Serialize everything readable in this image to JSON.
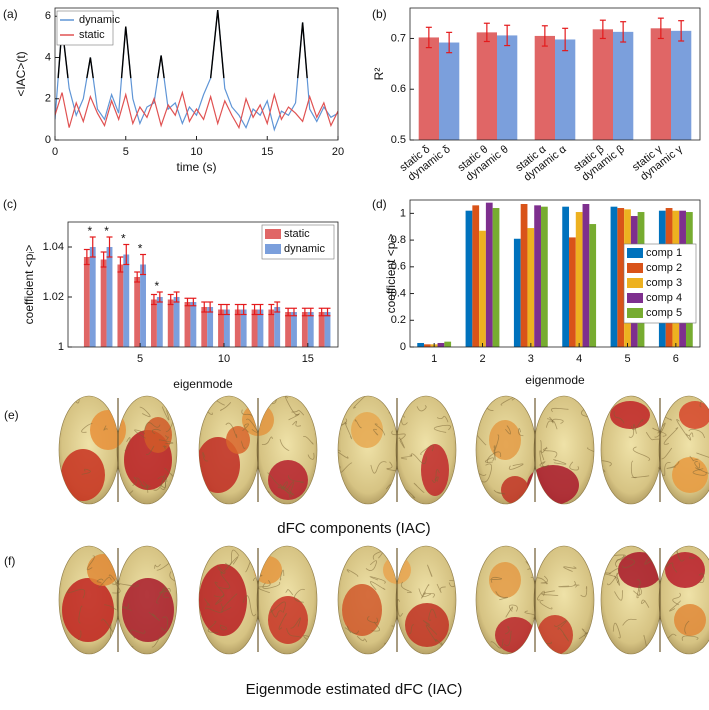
{
  "chart_data": [
    {
      "type": "line",
      "panel": "(a)",
      "x": [
        0,
        0.5,
        1,
        1.5,
        2,
        2.5,
        3,
        3.5,
        4,
        4.5,
        5,
        5.5,
        6,
        6.5,
        7,
        7.5,
        8,
        8.5,
        9,
        9.5,
        10,
        10.5,
        11,
        11.5,
        12,
        12.5,
        13,
        13.5,
        14,
        14.5,
        15,
        15.5,
        16,
        16.5,
        17,
        17.5,
        18,
        18.5,
        19,
        19.5,
        20
      ],
      "series": [
        {
          "name": "dynamic",
          "color": "#5f95d6",
          "values": [
            1,
            5.5,
            2.5,
            1.2,
            2,
            4,
            1.5,
            1,
            2.2,
            1.3,
            5.5,
            2,
            0.8,
            1.6,
            1.8,
            4.1,
            1.5,
            1.8,
            0.8,
            1.6,
            1.2,
            2.2,
            3,
            6.3,
            2.5,
            1.6,
            1.2,
            0.6,
            1.5,
            1.2,
            1.9,
            0.5,
            1.4,
            1.2,
            1.8,
            5.7,
            1.5,
            0.9,
            1.6,
            1.1,
            1.3
          ]
        },
        {
          "name": "static",
          "color": "#e05252",
          "values": [
            1.2,
            2.3,
            0.6,
            1.8,
            0.9,
            2.1,
            1.3,
            0.7,
            1.9,
            1,
            2.2,
            0.8,
            1.6,
            1.1,
            2,
            0.7,
            1.7,
            1.2,
            2.3,
            0.9,
            1.5,
            1,
            2.1,
            0.8,
            1.9,
            1.2,
            0.6,
            2,
            1.1,
            1.7,
            0.8,
            2.2,
            1,
            1.6,
            1.3,
            0.9,
            2.1,
            1.1,
            1.8,
            0.7,
            1.4
          ]
        }
      ],
      "highlight_above": 3,
      "highlight_color": "#000000",
      "xlim": [
        0,
        20
      ],
      "xticks": [
        0,
        5,
        10,
        15,
        20
      ],
      "ylim": [
        0,
        6.4
      ],
      "yticks": [
        0,
        2,
        4,
        6
      ],
      "x_label": "time (s)",
      "y_label": "<IAC>(t)",
      "legend": "upper left"
    },
    {
      "type": "bar",
      "panel": "(b)",
      "series": [
        {
          "color": "#e06666",
          "values": [
            0.702,
            0.712,
            0.705,
            0.718,
            0.72
          ],
          "errors": [
            0.02,
            0.018,
            0.02,
            0.018,
            0.02
          ],
          "labels": [
            "static δ",
            "static θ",
            "static α",
            "static β",
            "static γ"
          ]
        },
        {
          "color": "#7b9fdc",
          "values": [
            0.692,
            0.706,
            0.698,
            0.713,
            0.715
          ],
          "errors": [
            0.02,
            0.02,
            0.022,
            0.02,
            0.02
          ],
          "labels": [
            "dynamic δ",
            "dynamic θ",
            "dynamic α",
            "dynamic β",
            "dynamic γ"
          ]
        }
      ],
      "error_color": "#e41a1c",
      "ylim": [
        0.5,
        0.76
      ],
      "yticks": [
        0.5,
        0.6,
        0.7
      ],
      "y_label": "R²"
    },
    {
      "type": "bar",
      "panel": "(c)",
      "x": [
        2,
        3,
        4,
        5,
        6,
        7,
        8,
        9,
        10,
        11,
        12,
        13,
        14,
        15,
        16
      ],
      "series": [
        {
          "name": "static",
          "color": "#e06666",
          "values": [
            1.036,
            1.035,
            1.033,
            1.028,
            1.019,
            1.019,
            1.018,
            1.016,
            1.015,
            1.015,
            1.015,
            1.015,
            1.014,
            1.014,
            1.014
          ],
          "errors": [
            0.003,
            0.003,
            0.003,
            0.002,
            0.002,
            0.002,
            0.0015,
            0.002,
            0.002,
            0.002,
            0.002,
            0.002,
            0.0015,
            0.0015,
            0.0015
          ]
        },
        {
          "name": "dynamic",
          "color": "#7b9fdc",
          "values": [
            1.04,
            1.04,
            1.037,
            1.033,
            1.02,
            1.02,
            1.018,
            1.016,
            1.015,
            1.015,
            1.015,
            1.016,
            1.014,
            1.014,
            1.014
          ],
          "errors": [
            0.004,
            0.004,
            0.004,
            0.004,
            0.002,
            0.002,
            0.0015,
            0.002,
            0.002,
            0.002,
            0.002,
            0.002,
            0.0015,
            0.0015,
            0.0015
          ]
        }
      ],
      "error_color": "#e41a1c",
      "annotations": [
        {
          "x": 2,
          "text": "*"
        },
        {
          "x": 3,
          "text": "*"
        },
        {
          "x": 4,
          "text": "*"
        },
        {
          "x": 5,
          "text": "*"
        },
        {
          "x": 6,
          "text": "*"
        }
      ],
      "xlim": [
        0.7,
        16.8
      ],
      "xticks": [
        5,
        10,
        15
      ],
      "ylim": [
        1,
        1.05
      ],
      "yticks": [
        1,
        1.02,
        1.04
      ],
      "x_label": "eigenmode",
      "y_label": "coefficient <pᵢ>",
      "legend": "upper right"
    },
    {
      "type": "bar",
      "panel": "(d)",
      "x": [
        1,
        2,
        3,
        4,
        5,
        6
      ],
      "series": [
        {
          "name": "comp 1",
          "color": "#0072bd",
          "values": [
            0.03,
            1.02,
            0.81,
            1.05,
            1.05,
            1.02
          ]
        },
        {
          "name": "comp 2",
          "color": "#d95319",
          "values": [
            0.02,
            1.06,
            1.07,
            0.82,
            1.04,
            1.04
          ]
        },
        {
          "name": "comp 3",
          "color": "#edb120",
          "values": [
            0.02,
            0.87,
            0.89,
            1.01,
            1.03,
            1.02
          ]
        },
        {
          "name": "comp 4",
          "color": "#7e2f8e",
          "values": [
            0.03,
            1.08,
            1.06,
            1.07,
            0.98,
            1.02
          ]
        },
        {
          "name": "comp 5",
          "color": "#77ac30",
          "values": [
            0.04,
            1.04,
            1.05,
            0.92,
            1.01,
            1.01
          ]
        }
      ],
      "xlim": [
        0.5,
        6.5
      ],
      "xticks": [
        1,
        2,
        3,
        4,
        5,
        6
      ],
      "ylim": [
        0,
        1.1
      ],
      "yticks": [
        0,
        0.2,
        0.4,
        0.6,
        0.8,
        1
      ],
      "x_label": "eigenmode",
      "y_label": "coefficient <pᵢ>",
      "legend": "center right"
    }
  ],
  "figures": [
    {
      "panel": "(e)",
      "caption": "dFC components (IAC)"
    },
    {
      "panel": "(f)",
      "caption": "Eigenmode estimated dFC (IAC)"
    }
  ]
}
